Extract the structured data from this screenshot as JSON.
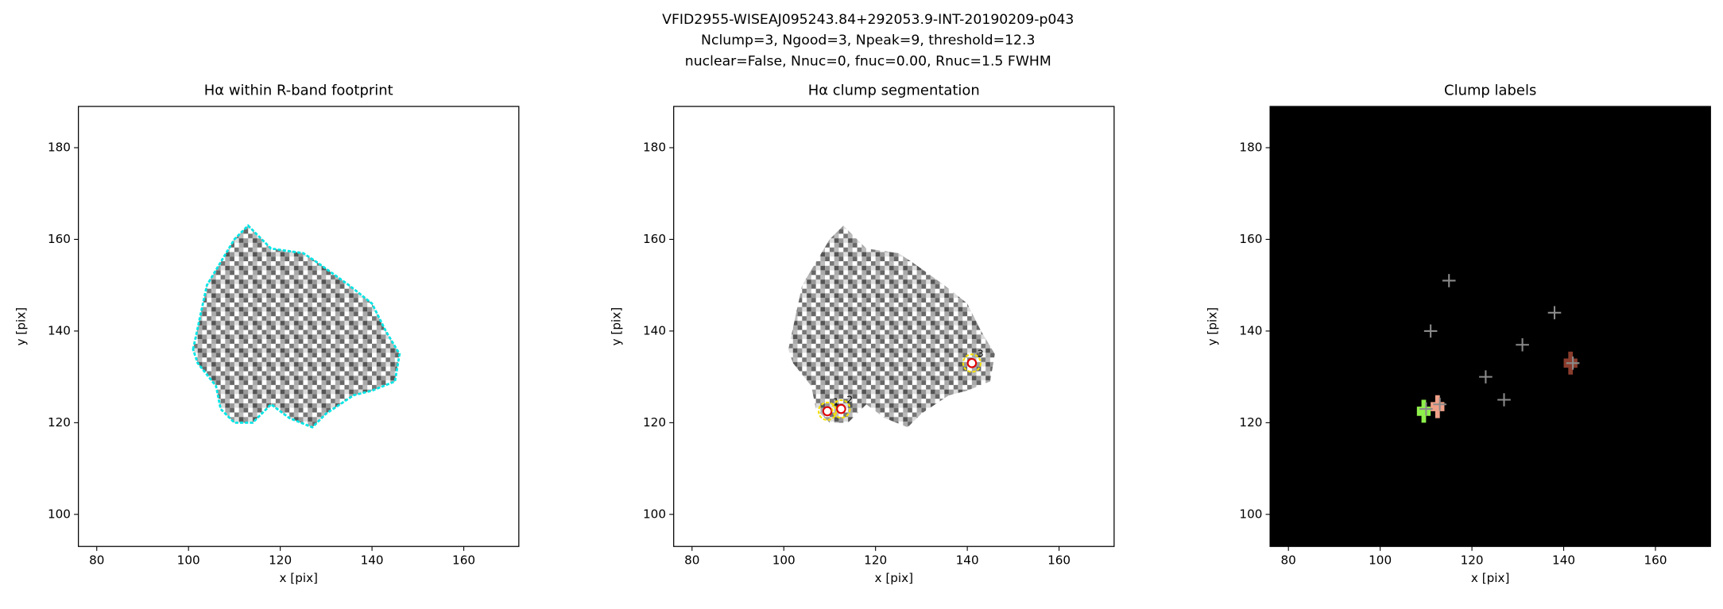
{
  "figure_title": [
    "VFID2955-WISEAJ095243.84+292053.9-INT-20190209-p043",
    "Nclump=3, Ngood=3, Npeak=9, threshold=12.3",
    "nuclear=False, Nnuc=0, fnuc=0.00, Rnuc=1.5 FWHM"
  ],
  "chart_data": [
    {
      "type": "image",
      "title": "Hα within R-band footprint",
      "xlabel": "x [pix]",
      "ylabel": "y [pix]",
      "xlim": [
        76,
        172
      ],
      "ylim": [
        93,
        189
      ],
      "xticks": [
        80,
        100,
        120,
        140,
        160
      ],
      "yticks": [
        100,
        120,
        140,
        160,
        180
      ],
      "background": "#ffffff",
      "contour_color": "#00e5e5"
    },
    {
      "type": "image",
      "title": "Hα clump segmentation",
      "xlabel": "x [pix]",
      "ylabel": "y [pix]",
      "xlim": [
        76,
        172
      ],
      "ylim": [
        93,
        189
      ],
      "xticks": [
        80,
        100,
        120,
        140,
        160
      ],
      "yticks": [
        100,
        120,
        140,
        160,
        180
      ],
      "background": "#ffffff",
      "clumps": {
        "labels": [
          "1",
          "2",
          "3"
        ],
        "x": [
          109.5,
          112.5,
          141
        ],
        "y": [
          122.5,
          123,
          133
        ],
        "color": "#e00000",
        "contour_color": "#f5e000"
      }
    },
    {
      "type": "image",
      "title": "Clump labels",
      "xlabel": "x [pix]",
      "ylabel": "y [pix]",
      "xlim": [
        76,
        172
      ],
      "ylim": [
        93,
        189
      ],
      "xticks": [
        80,
        100,
        120,
        140,
        160
      ],
      "yticks": [
        100,
        120,
        140,
        160,
        180
      ],
      "background": "#000000",
      "clump_regions": {
        "x": [
          109.5,
          112.5,
          141.5
        ],
        "y": [
          122.5,
          123.5,
          133
        ],
        "colors": [
          "#8ef04a",
          "#f0a088",
          "#8a3c2c"
        ]
      },
      "peaks": {
        "x": [
          115,
          111,
          138,
          131,
          123,
          127,
          110,
          113,
          142
        ],
        "y": [
          151,
          140,
          144,
          137,
          130,
          125,
          123,
          124,
          133
        ],
        "color": "#8a8a8a"
      }
    }
  ]
}
